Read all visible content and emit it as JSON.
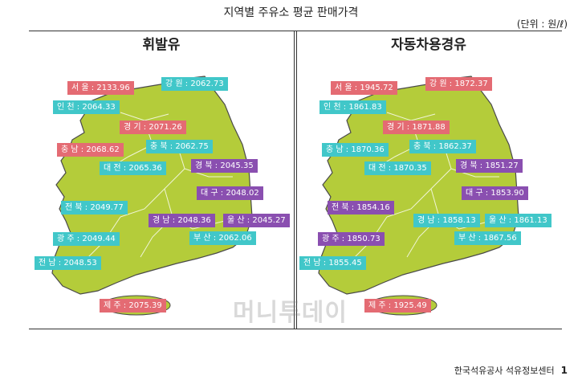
{
  "title": "지역별 주유소 평균 판매가격",
  "unit": "(단위 : 원/ℓ)",
  "panels": [
    {
      "title": "휘발유",
      "regions": [
        {
          "name": "서 울",
          "value": "2133.96",
          "color": "red"
        },
        {
          "name": "강 원",
          "value": "2062.73",
          "color": "teal"
        },
        {
          "name": "인 천",
          "value": "2064.33",
          "color": "teal"
        },
        {
          "name": "경 기",
          "value": "2071.26",
          "color": "red"
        },
        {
          "name": "충 남",
          "value": "2068.62",
          "color": "red"
        },
        {
          "name": "충 북",
          "value": "2062.75",
          "color": "teal"
        },
        {
          "name": "대 전",
          "value": "2065.36",
          "color": "teal"
        },
        {
          "name": "경 북",
          "value": "2045.35",
          "color": "purple"
        },
        {
          "name": "대 구",
          "value": "2048.02",
          "color": "purple"
        },
        {
          "name": "전 북",
          "value": "2049.77",
          "color": "teal"
        },
        {
          "name": "경 남",
          "value": "2048.36",
          "color": "purple"
        },
        {
          "name": "울 산",
          "value": "2045.27",
          "color": "purple"
        },
        {
          "name": "광 주",
          "value": "2049.44",
          "color": "teal"
        },
        {
          "name": "부 산",
          "value": "2062.06",
          "color": "teal"
        },
        {
          "name": "전 남",
          "value": "2048.53",
          "color": "teal"
        },
        {
          "name": "제 주",
          "value": "2075.39",
          "color": "red"
        }
      ]
    },
    {
      "title": "자동차용경유",
      "regions": [
        {
          "name": "서 울",
          "value": "1945.72",
          "color": "red"
        },
        {
          "name": "강 원",
          "value": "1872.37",
          "color": "red"
        },
        {
          "name": "인 천",
          "value": "1861.83",
          "color": "teal"
        },
        {
          "name": "경 기",
          "value": "1871.88",
          "color": "red"
        },
        {
          "name": "충 남",
          "value": "1870.36",
          "color": "teal"
        },
        {
          "name": "충 북",
          "value": "1862.37",
          "color": "teal"
        },
        {
          "name": "대 전",
          "value": "1870.35",
          "color": "teal"
        },
        {
          "name": "경 북",
          "value": "1851.27",
          "color": "purple"
        },
        {
          "name": "대 구",
          "value": "1853.90",
          "color": "purple"
        },
        {
          "name": "전 북",
          "value": "1854.16",
          "color": "purple"
        },
        {
          "name": "경 남",
          "value": "1858.13",
          "color": "teal"
        },
        {
          "name": "울 산",
          "value": "1861.13",
          "color": "teal"
        },
        {
          "name": "광 주",
          "value": "1850.73",
          "color": "purple"
        },
        {
          "name": "부 산",
          "value": "1867.56",
          "color": "teal"
        },
        {
          "name": "전 남",
          "value": "1855.45",
          "color": "teal"
        },
        {
          "name": "제 주",
          "value": "1925.49",
          "color": "red"
        }
      ]
    }
  ],
  "watermark": "머니투데이",
  "footer": {
    "org": "한국석유공사 석유정보센터",
    "page": "1"
  },
  "colors": {
    "red": "#e46b73",
    "teal": "#41c7c9",
    "purple": "#8a4fb0",
    "map": "#b4cc3a"
  }
}
